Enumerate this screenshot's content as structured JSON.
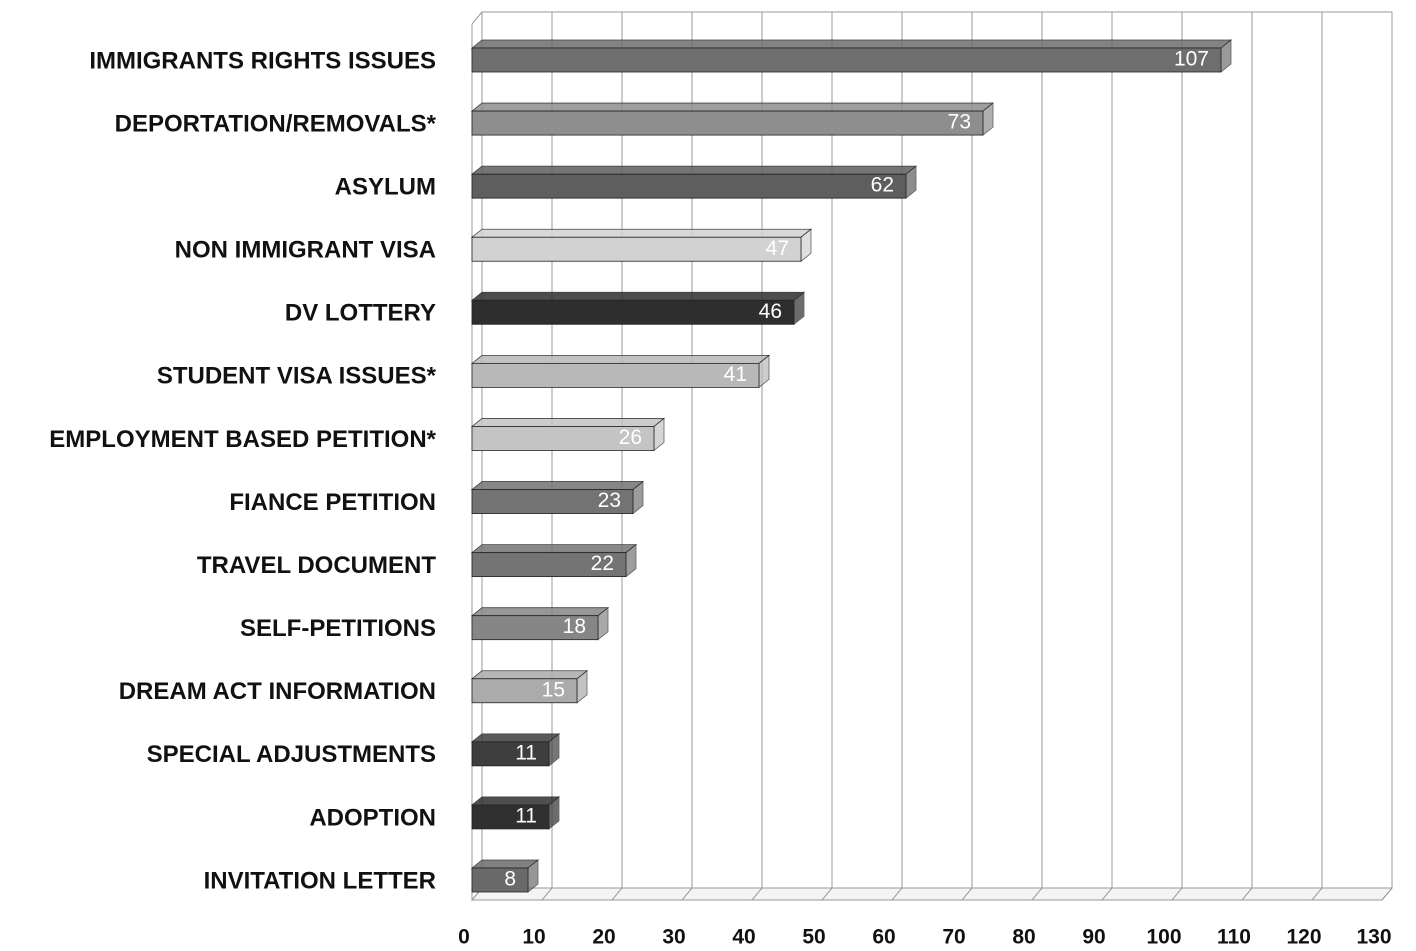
{
  "chart_data": {
    "type": "bar",
    "orientation": "horizontal",
    "categories": [
      "IMMIGRANTS RIGHTS ISSUES",
      "DEPORTATION/REMOVALS*",
      "ASYLUM",
      "NON IMMIGRANT VISA",
      "DV LOTTERY",
      "STUDENT VISA ISSUES*",
      "EMPLOYMENT BASED PETITION*",
      "FIANCE PETITION",
      "TRAVEL DOCUMENT",
      "SELF-PETITIONS",
      "DREAM ACT INFORMATION",
      "SPECIAL ADJUSTMENTS",
      "ADOPTION",
      "INVITATION LETTER"
    ],
    "values": [
      107,
      73,
      62,
      47,
      46,
      41,
      26,
      23,
      22,
      18,
      15,
      11,
      11,
      8
    ],
    "colors": [
      "#6e6e6e",
      "#8e8e8e",
      "#5e5e5e",
      "#d2d2d2",
      "#2e2e2e",
      "#b8b8b8",
      "#c4c4c4",
      "#737373",
      "#747474",
      "#868686",
      "#ababab",
      "#3e3e3e",
      "#303030",
      "#6a6a6a"
    ],
    "xlim": [
      0,
      130
    ],
    "xticks": [
      0,
      10,
      20,
      30,
      40,
      50,
      60,
      70,
      80,
      90,
      100,
      110,
      120,
      130
    ],
    "grid": true
  }
}
